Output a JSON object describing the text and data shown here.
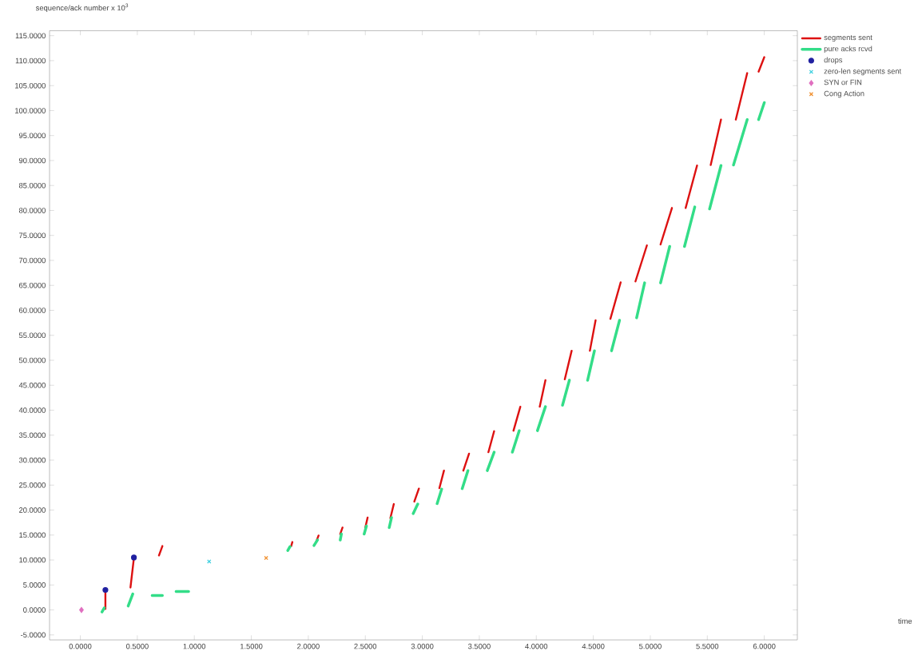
{
  "chart_data": {
    "type": "scatter",
    "annotations": [
      "time"
    ],
    "ylabel": "sequence/ack number x 10$^{3}$",
    "xlim": [
      -0.27,
      6.29
    ],
    "ylim": [
      -6,
      116
    ],
    "xticks": [
      {
        "value": 0,
        "label": "0.0000"
      },
      {
        "value": 0.5,
        "label": "0.5000"
      },
      {
        "value": 1,
        "label": "1.0000"
      },
      {
        "value": 1.5,
        "label": "1.5000"
      },
      {
        "value": 2,
        "label": "2.0000"
      },
      {
        "value": 2.5,
        "label": "2.5000"
      },
      {
        "value": 3,
        "label": "3.0000"
      },
      {
        "value": 3.5,
        "label": "3.5000"
      },
      {
        "value": 4,
        "label": "4.0000"
      },
      {
        "value": 4.5,
        "label": "4.5000"
      },
      {
        "value": 5,
        "label": "5.0000"
      },
      {
        "value": 5.5,
        "label": "5.5000"
      },
      {
        "value": 6,
        "label": "6.0000"
      }
    ],
    "yticks": [
      {
        "value": -5,
        "label": "-5.0000"
      },
      {
        "value": 0,
        "label": "0.0000"
      },
      {
        "value": 5,
        "label": "5.0000"
      },
      {
        "value": 10,
        "label": "10.0000"
      },
      {
        "value": 15,
        "label": "15.0000"
      },
      {
        "value": 20,
        "label": "20.0000"
      },
      {
        "value": 25,
        "label": "25.0000"
      },
      {
        "value": 30,
        "label": "30.0000"
      },
      {
        "value": 35,
        "label": "35.0000"
      },
      {
        "value": 40,
        "label": "40.0000"
      },
      {
        "value": 45,
        "label": "45.0000"
      },
      {
        "value": 50,
        "label": "50.0000"
      },
      {
        "value": 55,
        "label": "55.0000"
      },
      {
        "value": 60,
        "label": "60.0000"
      },
      {
        "value": 65,
        "label": "65.0000"
      },
      {
        "value": 70,
        "label": "70.0000"
      },
      {
        "value": 75,
        "label": "75.0000"
      },
      {
        "value": 80,
        "label": "80.0000"
      },
      {
        "value": 85,
        "label": "85.0000"
      },
      {
        "value": 90,
        "label": "90.0000"
      },
      {
        "value": 95,
        "label": "95.0000"
      },
      {
        "value": 100,
        "label": "100.0000"
      },
      {
        "value": 105,
        "label": "105.0000"
      },
      {
        "value": 110,
        "label": "110.0000"
      },
      {
        "value": 115,
        "label": "115.0000"
      }
    ],
    "legend": "top right",
    "series": [
      {
        "name": "segments sent",
        "type": "line",
        "color": "#dd1111",
        "x": [
          0.22,
          0.22,
          null,
          0.44,
          0.47,
          null,
          0.69,
          0.72,
          null,
          1.85,
          1.86,
          null,
          2.07,
          2.09,
          null,
          2.28,
          2.3,
          null,
          2.5,
          2.52,
          null,
          2.72,
          2.75,
          null,
          2.93,
          2.97,
          null,
          3.15,
          3.19,
          null,
          3.36,
          3.41,
          null,
          3.58,
          3.63,
          null,
          3.8,
          3.86,
          null,
          4.03,
          4.08,
          null,
          4.25,
          4.31,
          null,
          4.47,
          4.52,
          null,
          4.65,
          4.74,
          null,
          4.87,
          4.97,
          null,
          5.09,
          5.19,
          null,
          5.31,
          5.41,
          null,
          5.53,
          5.62,
          null,
          5.75,
          5.85,
          null,
          5.95,
          6.0
        ],
        "values": [
          0.2,
          3.8,
          null,
          4.5,
          10.4,
          null,
          10.9,
          12.8,
          null,
          12.8,
          13.6,
          null,
          13.7,
          14.9,
          null,
          15.2,
          16.5,
          null,
          16.5,
          18.5,
          null,
          18.4,
          21.2,
          null,
          21.7,
          24.3,
          null,
          24.4,
          27.9,
          null,
          27.9,
          31.3,
          null,
          31.6,
          35.8,
          null,
          35.9,
          40.7,
          null,
          40.7,
          46.0,
          null,
          46.2,
          51.9,
          null,
          51.9,
          58.0,
          null,
          58.3,
          65.6,
          null,
          65.8,
          73.0,
          null,
          73.2,
          80.5,
          null,
          80.5,
          89.0,
          null,
          89.1,
          98.2,
          null,
          98.2,
          107.5,
          null,
          107.8,
          110.7
        ]
      },
      {
        "name": "pure acks rcvd",
        "type": "line",
        "color": "#33dd88",
        "x": [
          0.19,
          0.21,
          null,
          0.42,
          0.46,
          null,
          0.63,
          0.72,
          null,
          0.84,
          0.95,
          null,
          1.82,
          1.84,
          null,
          2.05,
          2.08,
          null,
          2.28,
          2.29,
          null,
          2.49,
          2.51,
          null,
          2.71,
          2.73,
          null,
          2.92,
          2.96,
          null,
          3.13,
          3.17,
          null,
          3.35,
          3.4,
          null,
          3.57,
          3.63,
          null,
          3.79,
          3.85,
          null,
          4.01,
          4.08,
          null,
          4.23,
          4.29,
          null,
          4.45,
          4.51,
          null,
          4.66,
          4.73,
          null,
          4.88,
          4.95,
          null,
          5.09,
          5.17,
          null,
          5.3,
          5.39,
          null,
          5.52,
          5.62,
          null,
          5.73,
          5.85,
          null,
          5.95,
          6.0
        ],
        "values": [
          -0.4,
          0.4,
          null,
          0.8,
          3.2,
          null,
          2.9,
          2.9,
          null,
          3.7,
          3.7,
          null,
          11.9,
          12.7,
          null,
          12.9,
          14.0,
          null,
          14.0,
          15.2,
          null,
          15.2,
          16.8,
          null,
          16.5,
          18.5,
          null,
          19.3,
          21.2,
          null,
          21.3,
          24.2,
          null,
          24.3,
          27.9,
          null,
          27.9,
          31.6,
          null,
          31.6,
          35.9,
          null,
          35.9,
          40.7,
          null,
          41.0,
          46.0,
          null,
          46.0,
          51.9,
          null,
          51.9,
          58.0,
          null,
          58.5,
          65.5,
          null,
          65.5,
          72.8,
          null,
          72.8,
          80.7,
          null,
          80.3,
          89.0,
          null,
          89.1,
          98.2,
          null,
          98.2,
          101.6
        ]
      },
      {
        "name": "drops",
        "color": "#2020a0",
        "marker": "circle",
        "x": [
          0.22,
          0.47
        ],
        "values": [
          4.0,
          10.5
        ]
      },
      {
        "name": "zero-len segments sent",
        "color": "#40d0e0",
        "marker": "cross",
        "x": [
          1.13
        ],
        "values": [
          9.7
        ]
      },
      {
        "name": "SYN or FIN",
        "color": "#e070c0",
        "marker": "diamond",
        "x": [
          0.01
        ],
        "values": [
          0.0
        ]
      },
      {
        "name": "Cong Action",
        "color": "#f09030",
        "marker": "cross",
        "x": [
          1.63
        ],
        "values": [
          10.4
        ]
      }
    ]
  }
}
